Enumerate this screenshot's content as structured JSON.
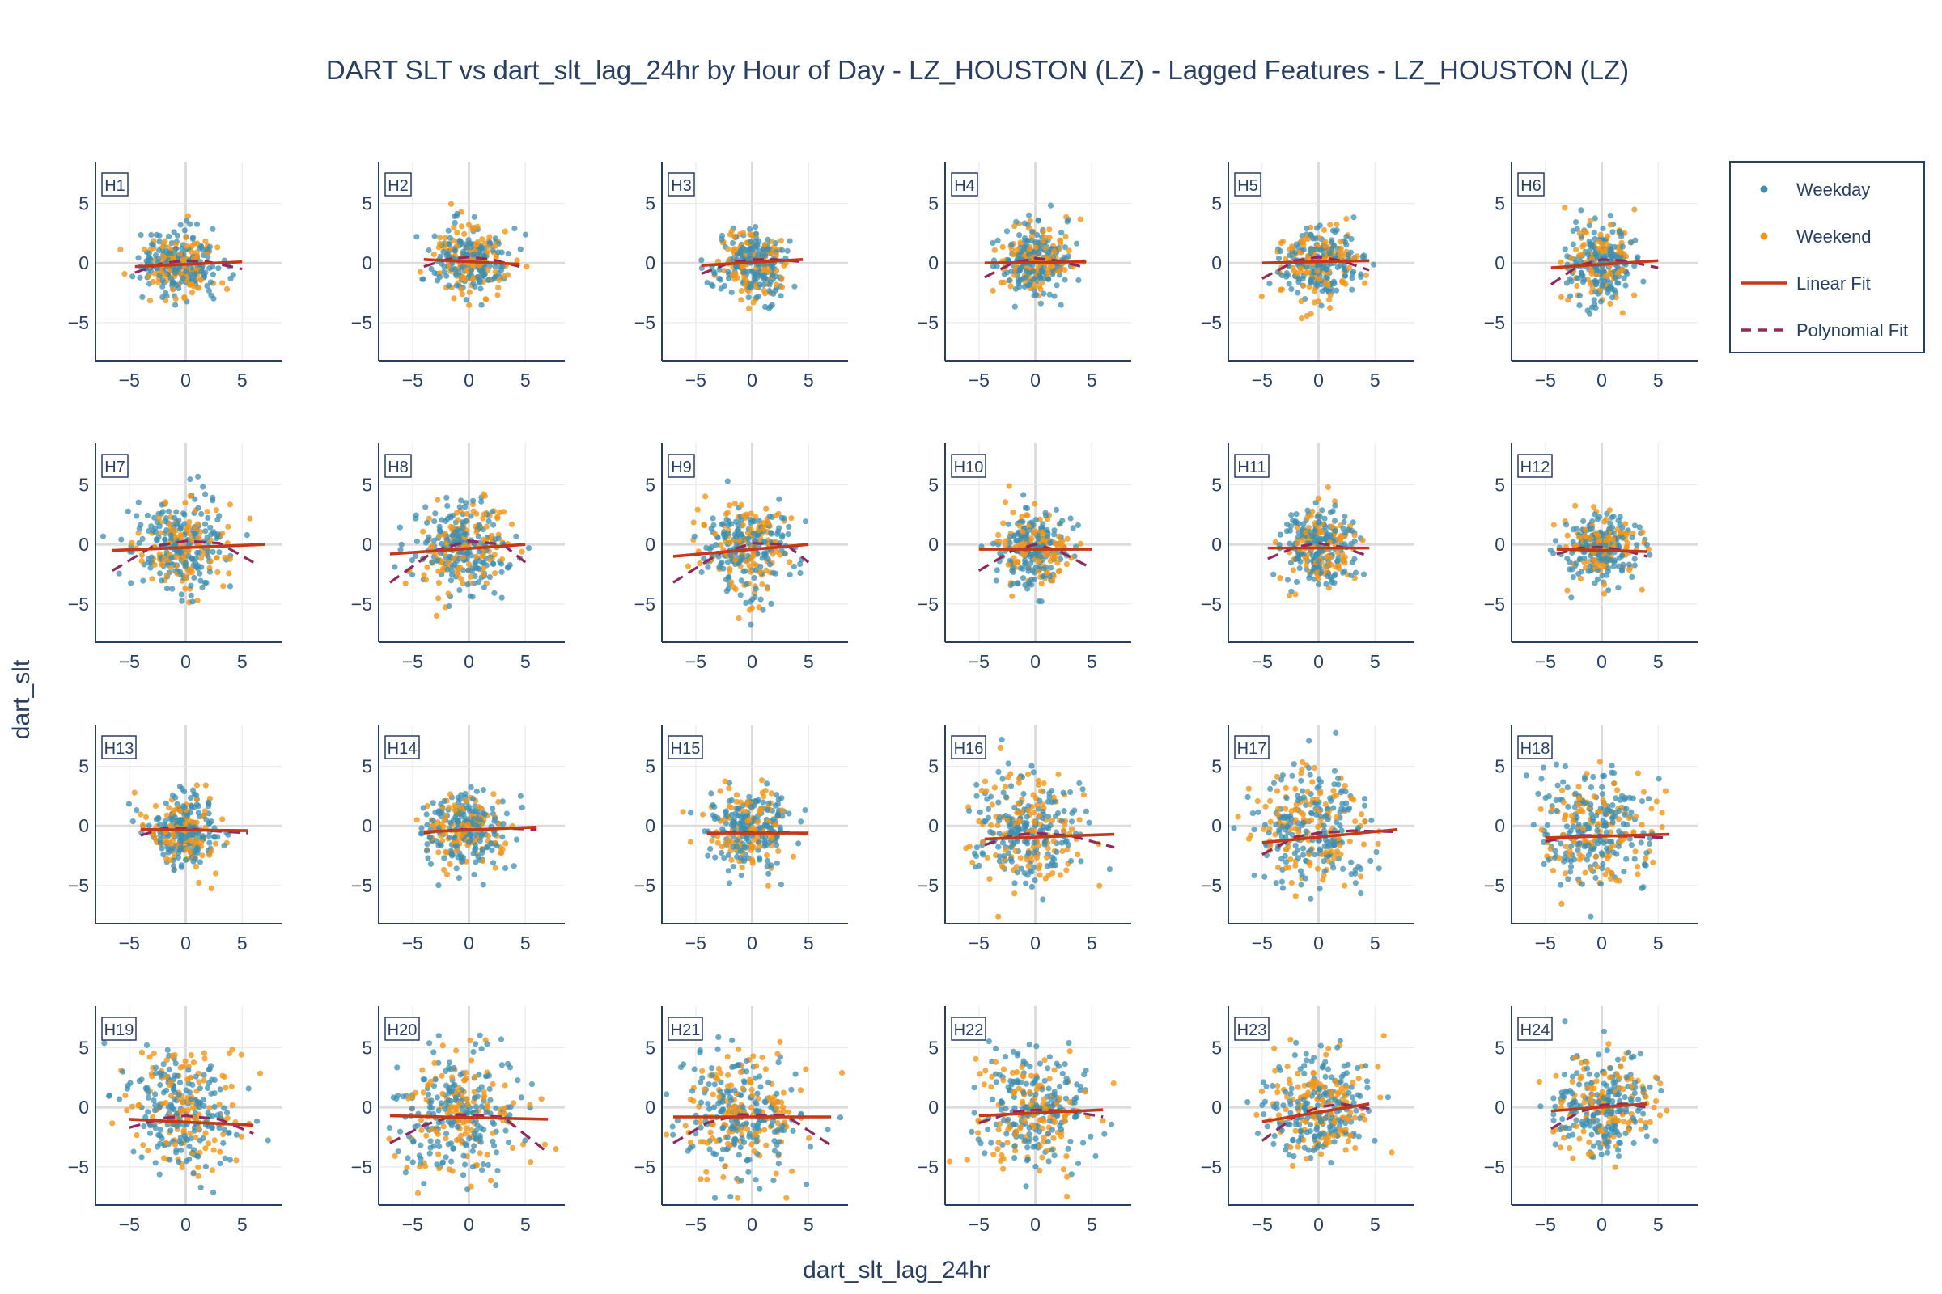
{
  "chart_data": {
    "type": "scatter",
    "title": "DART SLT vs dart_slt_lag_24hr by Hour of Day - LZ_HOUSTON (LZ) - Lagged Features - LZ_HOUSTON (LZ)",
    "xlabel": "dart_slt_lag_24hr",
    "ylabel": "dart_slt",
    "xlim": [
      -8,
      8.5
    ],
    "ylim": [
      -8.2,
      8.5
    ],
    "xticks": [
      "−5",
      "0",
      "5"
    ],
    "yticks": [
      "5",
      "0",
      "−5"
    ],
    "grid": true,
    "legend_position": "right",
    "legend": [
      {
        "label": "Weekday",
        "kind": "marker",
        "color": "#3d8eb0"
      },
      {
        "label": "Weekend",
        "kind": "marker",
        "color": "#f0961a"
      },
      {
        "label": "Linear Fit",
        "kind": "line",
        "color": "#c2391b"
      },
      {
        "label": "Polynomial Fit",
        "kind": "dash",
        "color": "#8e2a5c"
      }
    ],
    "panels": [
      {
        "label": "H1",
        "linear": [
          [
            -4.5,
            -0.3
          ],
          [
            5,
            0.1
          ]
        ],
        "poly": [
          [
            -4.5,
            -0.8
          ],
          [
            -2,
            0
          ],
          [
            0,
            0.2
          ],
          [
            2,
            0.1
          ],
          [
            5,
            -0.5
          ]
        ],
        "cloud": {
          "cx": -0.5,
          "cy": 0,
          "sx": 2.0,
          "sy": 1.6,
          "n": 300
        }
      },
      {
        "label": "H2",
        "linear": [
          [
            -4,
            0.3
          ],
          [
            4.5,
            -0.1
          ]
        ],
        "poly": [
          [
            -4,
            -0.3
          ],
          [
            -2,
            0.3
          ],
          [
            0,
            0.5
          ],
          [
            2,
            0.3
          ],
          [
            4.5,
            -0.3
          ]
        ],
        "cloud": {
          "cx": 0,
          "cy": 0.2,
          "sx": 1.9,
          "sy": 1.6,
          "n": 300
        }
      },
      {
        "label": "H3",
        "linear": [
          [
            -4.5,
            -0.2
          ],
          [
            4.5,
            0.3
          ]
        ],
        "poly": [
          [
            -4.5,
            -0.9
          ],
          [
            -2,
            0
          ],
          [
            0,
            0.3
          ],
          [
            2,
            0.3
          ],
          [
            4.5,
            0.1
          ]
        ],
        "cloud": {
          "cx": 0,
          "cy": 0,
          "sx": 1.9,
          "sy": 1.7,
          "n": 300
        }
      },
      {
        "label": "H4",
        "linear": [
          [
            -4.5,
            0
          ],
          [
            4.5,
            0.1
          ]
        ],
        "poly": [
          [
            -4.5,
            -1.2
          ],
          [
            -2,
            0
          ],
          [
            0,
            0.4
          ],
          [
            2,
            0.2
          ],
          [
            4.5,
            -0.4
          ]
        ],
        "cloud": {
          "cx": 0,
          "cy": 0.2,
          "sx": 1.9,
          "sy": 1.7,
          "n": 300
        }
      },
      {
        "label": "H5",
        "linear": [
          [
            -5,
            0
          ],
          [
            4.5,
            0.2
          ]
        ],
        "poly": [
          [
            -5,
            -1.3
          ],
          [
            -2,
            0.2
          ],
          [
            0,
            0.5
          ],
          [
            2,
            0.2
          ],
          [
            4.5,
            -0.6
          ]
        ],
        "cloud": {
          "cx": 0,
          "cy": 0,
          "sx": 2.0,
          "sy": 1.8,
          "n": 300
        }
      },
      {
        "label": "H6",
        "linear": [
          [
            -4.5,
            -0.4
          ],
          [
            5,
            0.2
          ]
        ],
        "poly": [
          [
            -4.5,
            -1.8
          ],
          [
            -2,
            -0.2
          ],
          [
            0,
            0.3
          ],
          [
            2,
            0.2
          ],
          [
            5,
            -0.4
          ]
        ],
        "cloud": {
          "cx": 0,
          "cy": 0,
          "sx": 1.9,
          "sy": 1.9,
          "n": 300
        }
      },
      {
        "label": "H7",
        "linear": [
          [
            -6.5,
            -0.5
          ],
          [
            7,
            0
          ]
        ],
        "poly": [
          [
            -6.5,
            -2.2
          ],
          [
            -3,
            -0.2
          ],
          [
            0,
            0.3
          ],
          [
            3,
            0.1
          ],
          [
            6,
            -1.5
          ]
        ],
        "cloud": {
          "cx": -0.5,
          "cy": -0.2,
          "sx": 2.5,
          "sy": 2.2,
          "n": 320
        }
      },
      {
        "label": "H8",
        "linear": [
          [
            -7,
            -0.8
          ],
          [
            5,
            0
          ]
        ],
        "poly": [
          [
            -7,
            -3.2
          ],
          [
            -3,
            -0.5
          ],
          [
            0,
            0.3
          ],
          [
            3,
            0
          ],
          [
            5,
            -1.5
          ]
        ],
        "cloud": {
          "cx": -0.5,
          "cy": -0.3,
          "sx": 2.3,
          "sy": 2.2,
          "n": 320
        }
      },
      {
        "label": "H9",
        "linear": [
          [
            -7,
            -1
          ],
          [
            5,
            0
          ]
        ],
        "poly": [
          [
            -7,
            -3.2
          ],
          [
            -3,
            -0.8
          ],
          [
            0,
            0.1
          ],
          [
            3,
            0
          ],
          [
            5,
            -1.5
          ]
        ],
        "cloud": {
          "cx": -0.5,
          "cy": -0.3,
          "sx": 2.2,
          "sy": 2.2,
          "n": 320
        }
      },
      {
        "label": "H10",
        "linear": [
          [
            -5,
            -0.4
          ],
          [
            5,
            -0.4
          ]
        ],
        "poly": [
          [
            -5,
            -2.2
          ],
          [
            -2,
            -0.5
          ],
          [
            0,
            0
          ],
          [
            2,
            -0.5
          ],
          [
            5,
            -2
          ]
        ],
        "cloud": {
          "cx": 0,
          "cy": -0.3,
          "sx": 1.8,
          "sy": 1.8,
          "n": 300
        }
      },
      {
        "label": "H11",
        "linear": [
          [
            -4.5,
            -0.3
          ],
          [
            4.5,
            -0.3
          ]
        ],
        "poly": [
          [
            -4.5,
            -1.2
          ],
          [
            -2,
            -0.2
          ],
          [
            0,
            0.1
          ],
          [
            2,
            -0.2
          ],
          [
            4.5,
            -1
          ]
        ],
        "cloud": {
          "cx": 0,
          "cy": -0.2,
          "sx": 1.8,
          "sy": 1.8,
          "n": 300
        }
      },
      {
        "label": "H12",
        "linear": [
          [
            -4,
            -0.4
          ],
          [
            4,
            -0.6
          ]
        ],
        "poly": [
          [
            -4,
            -0.8
          ],
          [
            -2,
            -0.3
          ],
          [
            0,
            -0.2
          ],
          [
            2,
            -0.5
          ],
          [
            4,
            -1
          ]
        ],
        "cloud": {
          "cx": 0,
          "cy": -0.2,
          "sx": 1.8,
          "sy": 1.7,
          "n": 300
        }
      },
      {
        "label": "H13",
        "linear": [
          [
            -4,
            -0.3
          ],
          [
            5.5,
            -0.4
          ]
        ],
        "poly": [
          [
            -4,
            -0.8
          ],
          [
            -2,
            -0.2
          ],
          [
            0,
            -0.2
          ],
          [
            2,
            -0.4
          ],
          [
            5.5,
            -0.6
          ]
        ],
        "cloud": {
          "cx": -0.3,
          "cy": -0.3,
          "sx": 2.0,
          "sy": 1.8,
          "n": 300
        }
      },
      {
        "label": "H14",
        "linear": [
          [
            -4,
            -0.5
          ],
          [
            6,
            -0.1
          ]
        ],
        "poly": [
          [
            -4,
            -0.6
          ],
          [
            -1,
            -0.3
          ],
          [
            1,
            -0.3
          ],
          [
            3,
            -0.2
          ],
          [
            6,
            -0.3
          ]
        ],
        "cloud": {
          "cx": -0.3,
          "cy": -0.3,
          "sx": 2.1,
          "sy": 1.8,
          "n": 300
        }
      },
      {
        "label": "H15",
        "linear": [
          [
            -4,
            -0.6
          ],
          [
            5,
            -0.6
          ]
        ],
        "poly": [
          [
            -4,
            -0.7
          ],
          [
            -1,
            -0.5
          ],
          [
            1,
            -0.6
          ],
          [
            3,
            -0.5
          ],
          [
            5,
            -0.7
          ]
        ],
        "cloud": {
          "cx": -0.3,
          "cy": -0.3,
          "sx": 2.0,
          "sy": 1.9,
          "n": 300
        }
      },
      {
        "label": "H16",
        "linear": [
          [
            -4.5,
            -1.1
          ],
          [
            7,
            -0.7
          ]
        ],
        "poly": [
          [
            -4.5,
            -1.6
          ],
          [
            -2,
            -0.8
          ],
          [
            0,
            -0.6
          ],
          [
            3,
            -0.8
          ],
          [
            7,
            -1.8
          ]
        ],
        "cloud": {
          "cx": -0.5,
          "cy": -0.5,
          "sx": 2.2,
          "sy": 2.2,
          "n": 320
        }
      },
      {
        "label": "H17",
        "linear": [
          [
            -5,
            -1.4
          ],
          [
            7,
            -0.3
          ]
        ],
        "poly": [
          [
            -5,
            -2.4
          ],
          [
            -2,
            -0.9
          ],
          [
            0,
            -0.6
          ],
          [
            3,
            -0.4
          ],
          [
            7,
            -0.5
          ]
        ],
        "cloud": {
          "cx": -0.5,
          "cy": -0.5,
          "sx": 2.2,
          "sy": 2.3,
          "n": 320
        }
      },
      {
        "label": "H18",
        "linear": [
          [
            -5,
            -1
          ],
          [
            6,
            -0.7
          ]
        ],
        "poly": [
          [
            -5,
            -1.3
          ],
          [
            -2,
            -0.8
          ],
          [
            0,
            -0.8
          ],
          [
            3,
            -0.9
          ],
          [
            6,
            -1
          ]
        ],
        "cloud": {
          "cx": -0.5,
          "cy": -0.5,
          "sx": 2.3,
          "sy": 2.4,
          "n": 320
        }
      },
      {
        "label": "H19",
        "linear": [
          [
            -5,
            -1
          ],
          [
            6,
            -1.5
          ]
        ],
        "poly": [
          [
            -5,
            -1.7
          ],
          [
            -2,
            -0.9
          ],
          [
            0,
            -0.7
          ],
          [
            3,
            -1
          ],
          [
            6,
            -2.2
          ]
        ],
        "cloud": {
          "cx": -0.5,
          "cy": -0.6,
          "sx": 2.3,
          "sy": 2.4,
          "n": 320
        }
      },
      {
        "label": "H20",
        "linear": [
          [
            -7,
            -0.7
          ],
          [
            7,
            -1
          ]
        ],
        "poly": [
          [
            -7,
            -3
          ],
          [
            -4,
            -1.5
          ],
          [
            -1,
            -0.6
          ],
          [
            3,
            -0.8
          ],
          [
            7,
            -3.8
          ]
        ],
        "cloud": {
          "cx": -0.8,
          "cy": -0.8,
          "sx": 2.6,
          "sy": 2.6,
          "n": 330
        }
      },
      {
        "label": "H21",
        "linear": [
          [
            -7,
            -0.8
          ],
          [
            7,
            -0.8
          ]
        ],
        "poly": [
          [
            -7,
            -3
          ],
          [
            -4,
            -1.3
          ],
          [
            -1,
            -0.6
          ],
          [
            3,
            -0.7
          ],
          [
            7,
            -3.2
          ]
        ],
        "cloud": {
          "cx": -0.8,
          "cy": -0.6,
          "sx": 2.6,
          "sy": 2.5,
          "n": 330
        }
      },
      {
        "label": "H22",
        "linear": [
          [
            -5,
            -0.7
          ],
          [
            6,
            -0.2
          ]
        ],
        "poly": [
          [
            -5,
            -1.3
          ],
          [
            -2,
            -0.4
          ],
          [
            0,
            -0.2
          ],
          [
            3,
            -0.3
          ],
          [
            6,
            -0.8
          ]
        ],
        "cloud": {
          "cx": -0.3,
          "cy": -0.4,
          "sx": 2.1,
          "sy": 2.1,
          "n": 320
        }
      },
      {
        "label": "H23",
        "linear": [
          [
            -5,
            -1.2
          ],
          [
            4.5,
            0.3
          ]
        ],
        "poly": [
          [
            -5,
            -2.8
          ],
          [
            -2,
            -0.7
          ],
          [
            0,
            0
          ],
          [
            2,
            0.3
          ],
          [
            4.5,
            -0.1
          ]
        ],
        "cloud": {
          "cx": 0,
          "cy": -0.3,
          "sx": 1.9,
          "sy": 2.0,
          "n": 320
        }
      },
      {
        "label": "H24",
        "linear": [
          [
            -4.5,
            -0.3
          ],
          [
            4,
            0.3
          ]
        ],
        "poly": [
          [
            -4.5,
            -1.8
          ],
          [
            -2,
            -0.4
          ],
          [
            0,
            0.2
          ],
          [
            2,
            0.3
          ],
          [
            4,
            0
          ]
        ],
        "cloud": {
          "cx": 0,
          "cy": 0,
          "sx": 1.7,
          "sy": 1.8,
          "n": 320
        }
      }
    ]
  }
}
